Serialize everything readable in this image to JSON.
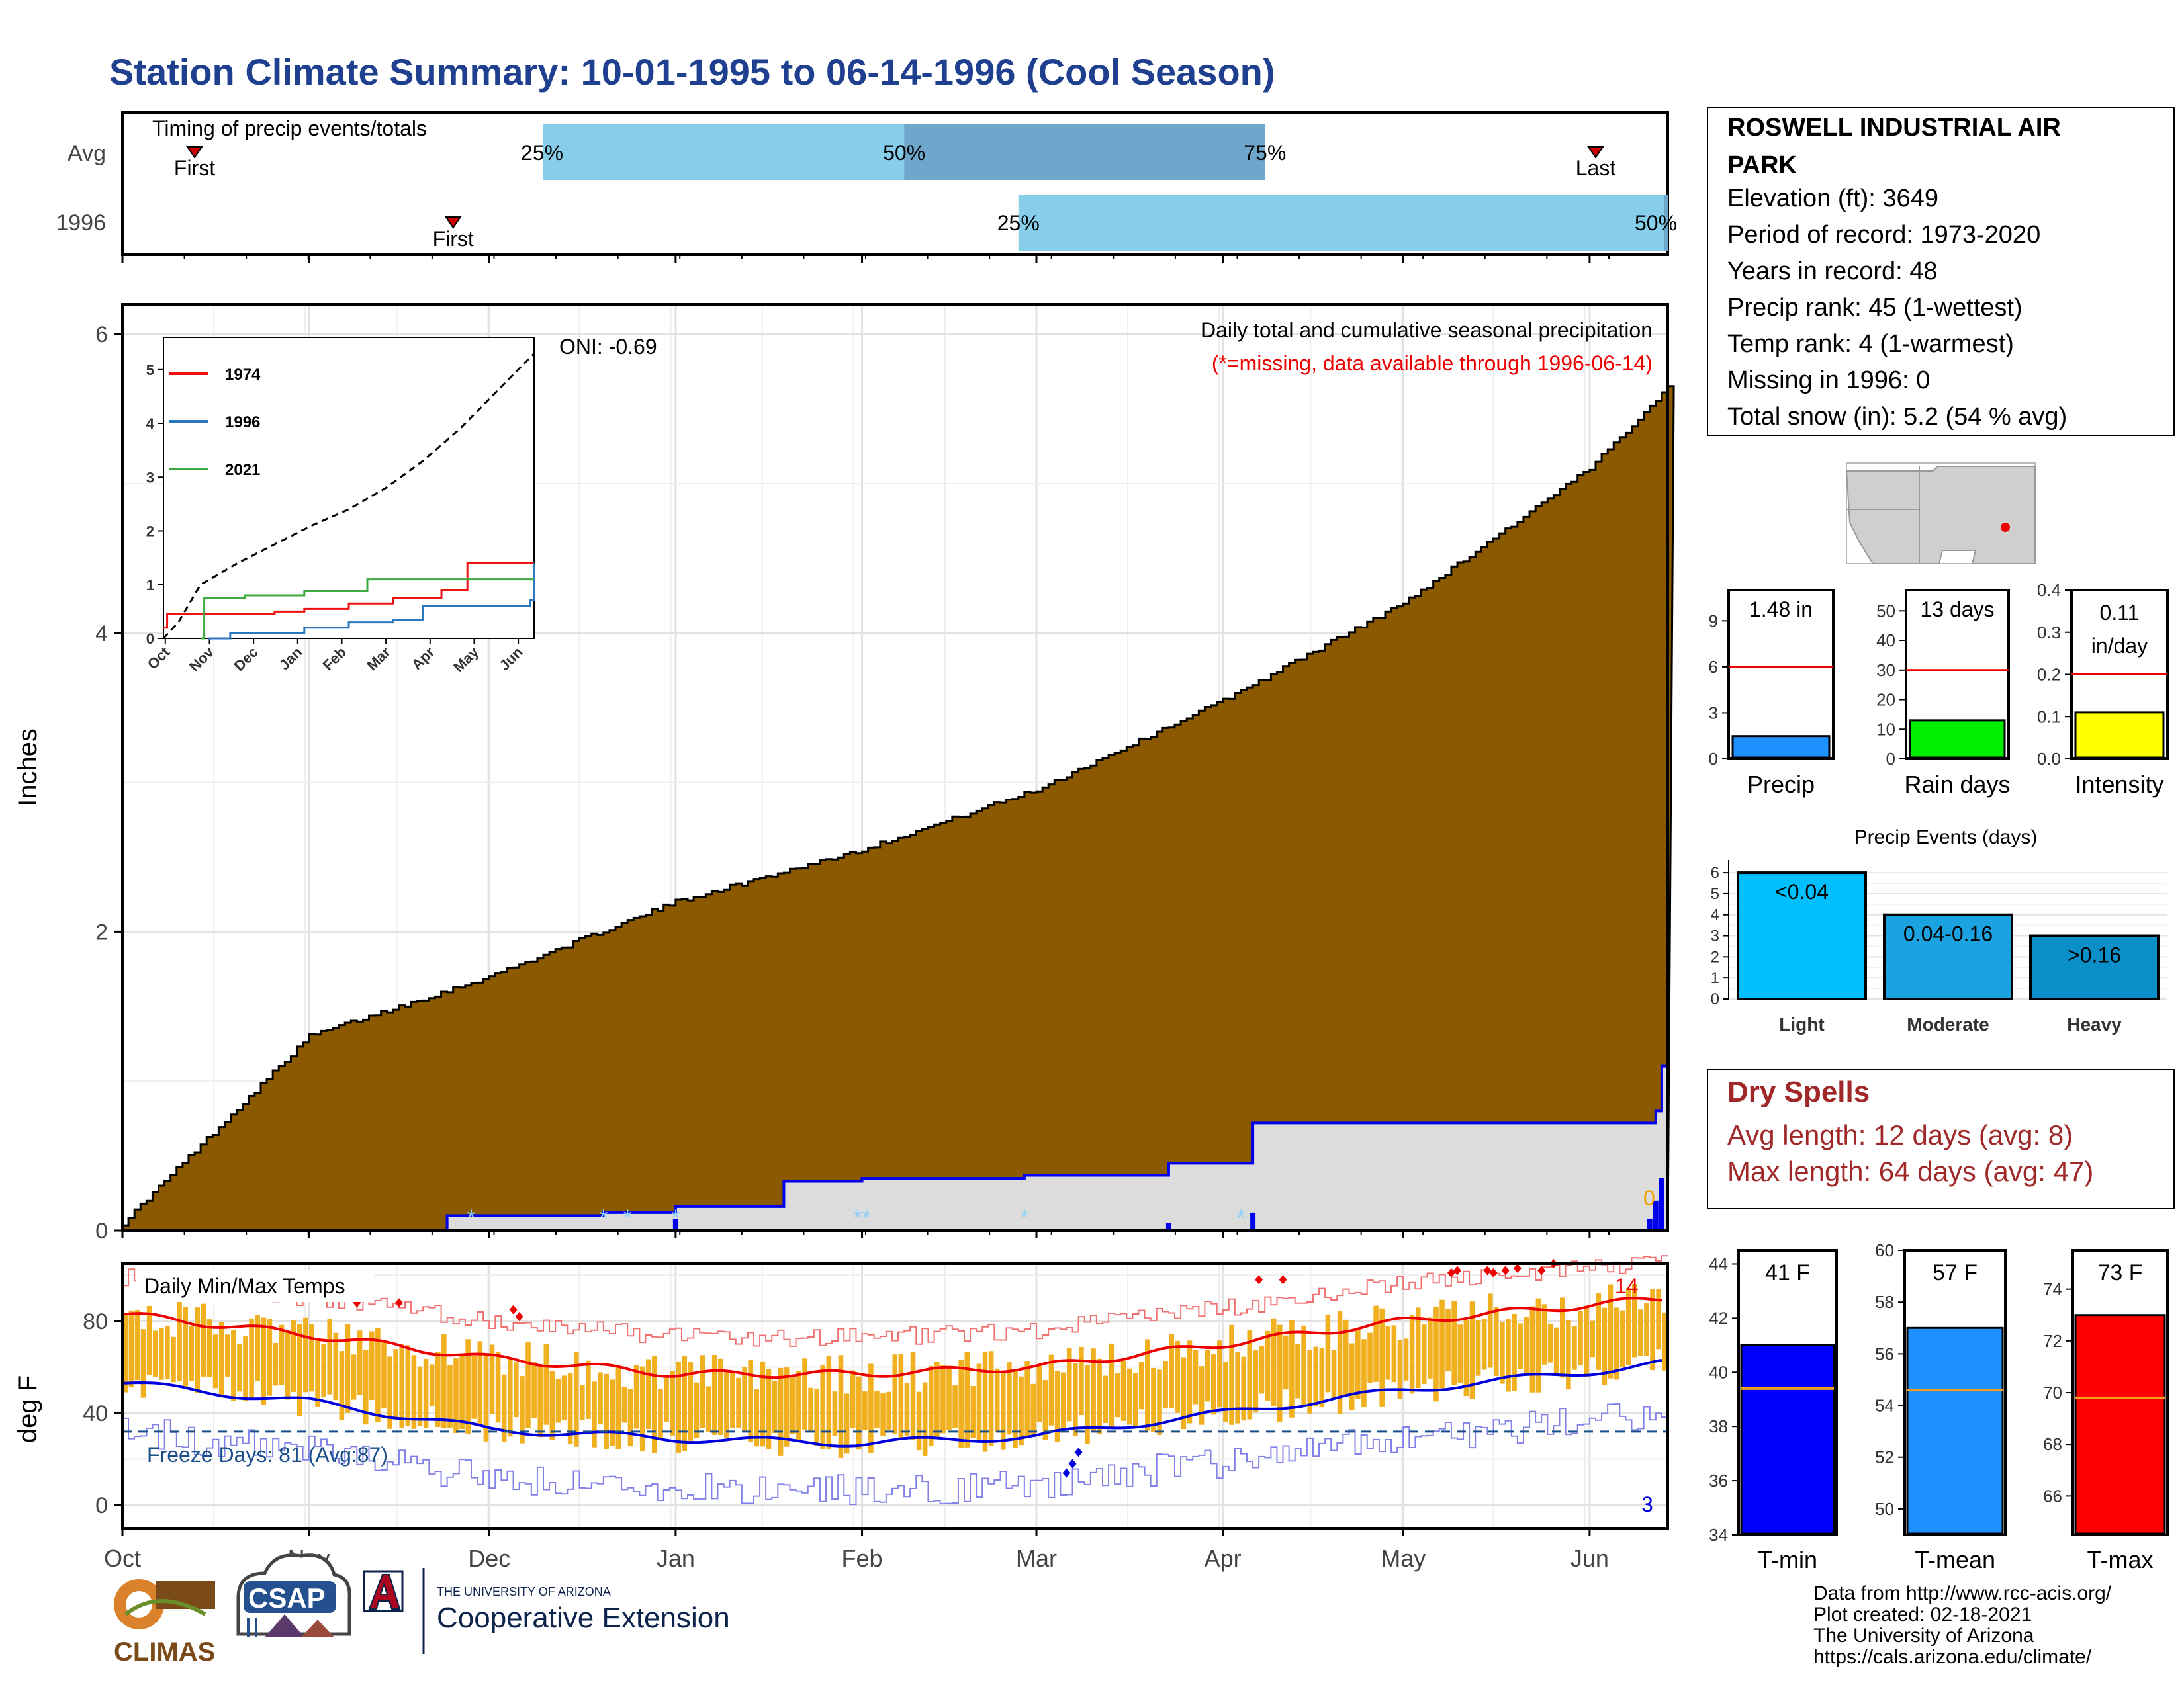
{
  "page": {
    "title": "Station Climate Summary: 10-01-1995 to 06-14-1996 (Cool Season)"
  },
  "colors": {
    "title": "#1f3f8f",
    "precip_fill": "#8b5a00",
    "current_fill": "#dcdcdc",
    "current_line": "#0000ee",
    "timing_light": "#87ceeb",
    "timing_dark": "#6ea6cc",
    "temp_bar": "#f0b020",
    "tmax_line": "#ee0000",
    "tmin_line": "#0000dd",
    "dry_spells": "#a02828",
    "freeze_line": "#1a4f8a"
  },
  "months": [
    "Oct",
    "Nov",
    "Dec",
    "Jan",
    "Feb",
    "Mar",
    "Apr",
    "May",
    "Jun"
  ],
  "timing": {
    "label": "Timing of precip events/totals",
    "rows": [
      "Avg",
      "1996"
    ],
    "avg": {
      "first_label": "First",
      "last_label": "Last",
      "first_day": 12,
      "last_day": 245,
      "p25_day": 70,
      "p50_day": 130,
      "p75_day": 190,
      "q25": "25%",
      "q50": "50%",
      "q75": "75%"
    },
    "current": {
      "first_label": "First",
      "first_day": 55,
      "p25_day": 149,
      "end_day": 257,
      "q25": "25%",
      "q50": "50%"
    }
  },
  "precip_panel": {
    "ylabel": "Inches",
    "yticks": [
      0,
      2,
      4,
      6
    ],
    "oni": "ONI: -0.69",
    "title": "Daily total and cumulative seasonal precipitation",
    "subtitle": "(*=missing, data available through 1996-06-14)",
    "end_label": "0"
  },
  "inset": {
    "yticks": [
      0,
      1,
      2,
      3,
      4,
      5
    ],
    "months": [
      "Oct",
      "Nov",
      "Dec",
      "Jan",
      "Feb",
      "Mar",
      "Apr",
      "May",
      "Jun"
    ],
    "legend": [
      "1974",
      "1996",
      "2021"
    ],
    "legend_colors": [
      "#ee1111",
      "#2a78c0",
      "#3caa3c"
    ]
  },
  "temp_panel": {
    "ylabel": "deg F",
    "title": "Daily Min/Max Temps",
    "yticks": [
      0,
      40,
      80
    ],
    "freeze_label": "Freeze Days: 81 (Avg:87)",
    "max_count": "14",
    "min_count": "3"
  },
  "station": {
    "name_line1": "ROSWELL INDUSTRIAL AIR",
    "name_line2": "PARK",
    "lines": [
      "Elevation (ft): 3649",
      "Period of record: 1973-2020",
      "Years in record: 48",
      "Precip rank: 45 (1-wettest)",
      "Temp rank: 4 (1-warmest)",
      "Missing in 1996: 0",
      "Total snow (in): 5.2 (54 % avg)"
    ]
  },
  "mini_bars": [
    {
      "label": "Precip",
      "value_text": "1.48 in",
      "value": 1.48,
      "avg": 6,
      "ymax": 11,
      "ticks": [
        0,
        3,
        6,
        9
      ],
      "color": "#1e90ff"
    },
    {
      "label": "Rain days",
      "value_text": "13 days",
      "value": 13,
      "avg": 30,
      "ymax": 57,
      "ticks": [
        0,
        10,
        20,
        30,
        40,
        50
      ],
      "color": "#00ee00"
    },
    {
      "label": "Intensity",
      "value_text_1": "0.11",
      "value_text_2": "in/day",
      "value": 0.11,
      "avg": 0.2,
      "ymax": 0.4,
      "ticks": [
        "0.0",
        "0.1",
        "0.2",
        "0.3",
        "0.4"
      ],
      "color": "#ffff00"
    }
  ],
  "events": {
    "title": "Precip Events (days)",
    "yticks": [
      0,
      1,
      2,
      3,
      4,
      5,
      6
    ],
    "bars": [
      {
        "cat": "Light",
        "label": "<0.04",
        "value": 6,
        "color": "#00bfff"
      },
      {
        "cat": "Moderate",
        "label": "0.04-0.16",
        "value": 4,
        "color": "#1aa3e0"
      },
      {
        "cat": "Heavy",
        "label": ">0.16",
        "value": 3,
        "color": "#0a8fc8"
      }
    ]
  },
  "dry_spells": {
    "title": "Dry Spells",
    "line1": "Avg length: 12 days (avg: 8)",
    "line2": "Max length: 64 days (avg: 47)"
  },
  "temp_bars": [
    {
      "label": "T-min",
      "value_text": "41 F",
      "value": 41,
      "avg": 39.4,
      "ymin": 34,
      "ymax": 44.5,
      "ticks": [
        34,
        36,
        38,
        40,
        42,
        44
      ],
      "color": "#0000ff"
    },
    {
      "label": "T-mean",
      "value_text": "57 F",
      "value": 57,
      "avg": 54.6,
      "ymin": 49,
      "ymax": 60,
      "ticks": [
        50,
        52,
        54,
        56,
        58,
        60
      ],
      "color": "#1e90ff"
    },
    {
      "label": "T-max",
      "value_text": "73 F",
      "value": 73,
      "avg": 69.8,
      "ymin": 64.5,
      "ymax": 75.5,
      "ticks": [
        66,
        68,
        70,
        72,
        74
      ],
      "color": "#ff0000"
    }
  ],
  "footer": {
    "source": "Data from http://www.rcc-acis.org/",
    "created": "Plot created: 02-18-2021",
    "univ": "The University of Arizona",
    "url": "https://cals.arizona.edu/climate/",
    "climas": "CLIMAS",
    "csap": "CSAP",
    "ua_small": "THE UNIVERSITY OF ARIZONA",
    "ua_big": "Cooperative Extension"
  },
  "chart_data": [
    {
      "type": "area",
      "title": "Daily total and cumulative seasonal precipitation",
      "ylabel": "Inches",
      "ylim": [
        0,
        6.2
      ],
      "x": [
        "Oct",
        "Nov",
        "Dec",
        "Jan",
        "Feb",
        "Mar",
        "Apr",
        "May",
        "Jun",
        "Jun 14"
      ],
      "series": [
        {
          "name": "",
          "values": [
            0.05,
            1.3,
            1.7,
            2.2,
            2.55,
            2.95,
            3.55,
            4.2,
            5.1,
            5.65
          ]
        },
        {
          "name": "1996",
          "values": [
            0.0,
            0.0,
            0.1,
            0.15,
            0.33,
            0.37,
            0.7,
            0.72,
            0.72,
            1.48
          ]
        }
      ]
    },
    {
      "type": "line",
      "ylabel": "deg F",
      "title": "Daily Min/Max Temps",
      "ylim": [
        -10,
        105
      ],
      "x": [
        "Oct",
        "Nov",
        "Dec",
        "Jan",
        "Feb",
        "Mar",
        "Apr",
        "May",
        "Jun",
        "Jun 14"
      ],
      "series": [
        {
          "name": "",
          "values": [
            83,
            74,
            64,
            57,
            57,
            60,
            70,
            80,
            87,
            90
          ]
        },
        {
          "name": "",
          "values": [
            53,
            45,
            33,
            29,
            27,
            30,
            40,
            50,
            58,
            62
          ]
        }
      ]
    },
    {
      "type": "bar",
      "title": "Precip Events (days)",
      "categories": [
        "Light",
        "Moderate",
        "Heavy"
      ],
      "values": [
        6,
        4,
        3
      ]
    }
  ]
}
